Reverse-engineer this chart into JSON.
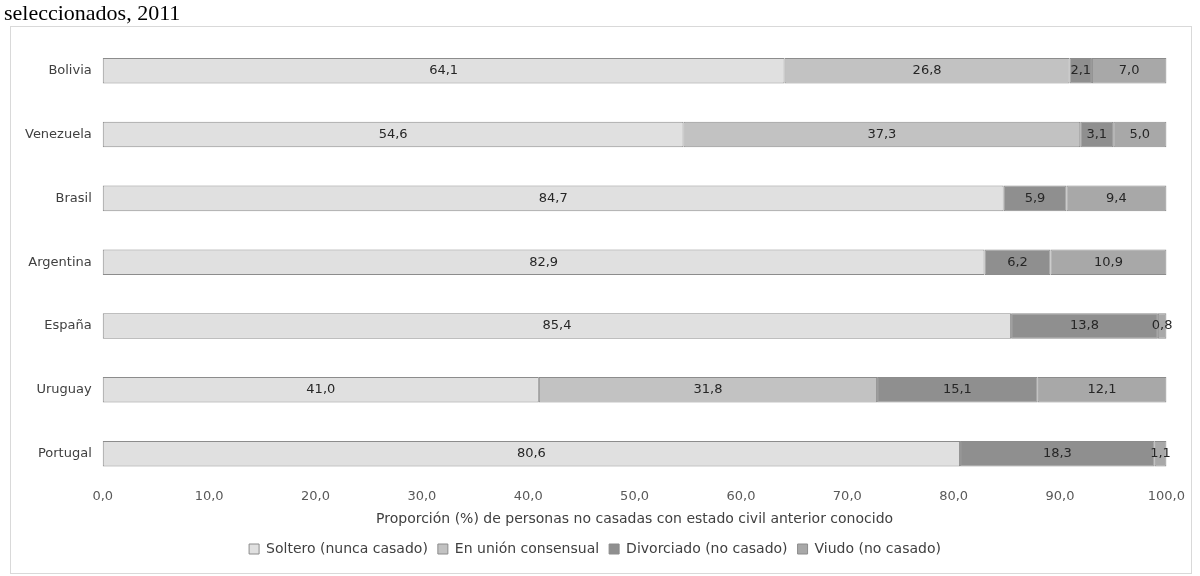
{
  "chart_data": {
    "type": "bar",
    "orientation": "horizontal",
    "stacked": true,
    "title": "seleccionados, 2011",
    "xlabel": "Proporción (%) de personas no casadas con estado civil anterior conocido",
    "categories": [
      "Bolivia",
      "Venezuela",
      "Brasil",
      "Argentina",
      "España",
      "Uruguay",
      "Portugal"
    ],
    "series": [
      {
        "name": "Soltero (nunca casado)",
        "color": "#e0e0e0",
        "values": [
          64.1,
          54.6,
          84.7,
          82.9,
          85.4,
          41.0,
          80.6
        ],
        "value_labels": [
          "64,1",
          "54,6",
          "84,7",
          "82,9",
          "85,4",
          "41,0",
          "80,6"
        ]
      },
      {
        "name": "En unión consensual",
        "color": "#c2c2c2",
        "values": [
          26.8,
          37.3,
          null,
          null,
          null,
          31.8,
          null
        ],
        "value_labels": [
          "26,8",
          "37,3",
          null,
          null,
          null,
          "31,8",
          null
        ]
      },
      {
        "name": "Divorciado (no casado)",
        "color": "#8f8f8f",
        "values": [
          2.1,
          3.1,
          5.9,
          6.2,
          13.8,
          15.1,
          18.3
        ],
        "value_labels": [
          "2,1",
          "3,1",
          "5,9",
          "6,2",
          "13,8",
          "15,1",
          "18,3"
        ]
      },
      {
        "name": "Viudo (no casado)",
        "color": "#a8a8a8",
        "values": [
          7.0,
          5.0,
          9.4,
          10.9,
          0.8,
          12.1,
          1.1
        ],
        "value_labels": [
          "7,0",
          "5,0",
          "9,4",
          "10,9",
          "0,8",
          "12,1",
          "1,1"
        ]
      }
    ],
    "xlim": [
      0,
      100
    ],
    "xticks": [
      {
        "value": 0,
        "label": "0,0"
      },
      {
        "value": 10,
        "label": "10,0"
      },
      {
        "value": 20,
        "label": "20,0"
      },
      {
        "value": 30,
        "label": "30,0"
      },
      {
        "value": 40,
        "label": "40,0"
      },
      {
        "value": 50,
        "label": "50,0"
      },
      {
        "value": 60,
        "label": "60,0"
      },
      {
        "value": 70,
        "label": "70,0"
      },
      {
        "value": 80,
        "label": "80,0"
      },
      {
        "value": 90,
        "label": "90,0"
      },
      {
        "value": 100,
        "label": "100,0"
      }
    ],
    "grid": false,
    "legend": "bottom"
  }
}
